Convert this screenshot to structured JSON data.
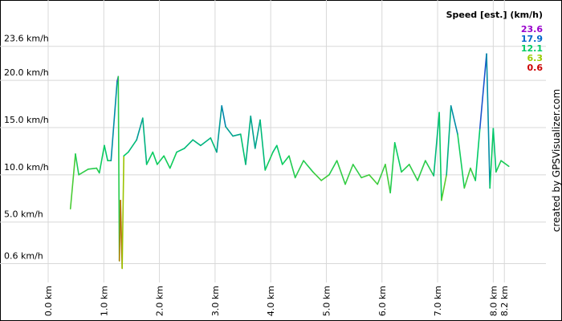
{
  "chart_data": {
    "type": "line",
    "x": [
      0.4,
      0.49,
      0.55,
      0.72,
      0.87,
      0.92,
      1.01,
      1.07,
      1.13,
      1.24,
      1.26,
      1.28,
      1.3,
      1.33,
      1.36,
      1.44,
      1.59,
      1.7,
      1.77,
      1.88,
      1.96,
      2.08,
      2.19,
      2.31,
      2.45,
      2.6,
      2.74,
      2.92,
      3.03,
      3.12,
      3.19,
      3.32,
      3.46,
      3.55,
      3.64,
      3.72,
      3.81,
      3.9,
      4.04,
      4.11,
      4.21,
      4.33,
      4.44,
      4.59,
      4.76,
      4.91,
      5.05,
      5.19,
      5.34,
      5.48,
      5.63,
      5.77,
      5.92,
      6.06,
      6.15,
      6.23,
      6.35,
      6.49,
      6.64,
      6.78,
      6.93,
      7.03,
      7.07,
      7.16,
      7.24,
      7.36,
      7.48,
      7.59,
      7.68,
      7.76,
      7.88,
      7.94,
      8.0,
      8.05,
      8.14,
      8.28
    ],
    "series": [
      {
        "name": "Speed",
        "values": [
          6.4,
          12.2,
          10.0,
          10.6,
          10.7,
          10.2,
          13.1,
          11.5,
          11.5,
          19.9,
          20.4,
          0.9,
          7.3,
          0.1,
          12.0,
          12.4,
          13.7,
          16.0,
          11.1,
          12.4,
          11.1,
          12.0,
          10.7,
          12.4,
          12.8,
          13.7,
          13.1,
          13.9,
          12.4,
          17.3,
          15.1,
          14.1,
          14.3,
          11.1,
          16.2,
          12.8,
          15.8,
          10.5,
          12.4,
          13.1,
          11.1,
          12.0,
          9.7,
          11.5,
          10.3,
          9.4,
          10.0,
          11.5,
          9.0,
          11.1,
          9.7,
          10.0,
          9.0,
          11.1,
          8.1,
          13.4,
          10.3,
          11.1,
          9.4,
          11.5,
          9.9,
          16.6,
          7.3,
          10.0,
          17.3,
          14.3,
          8.6,
          10.7,
          9.4,
          14.9,
          22.8,
          8.6,
          14.9,
          10.3,
          11.5,
          10.9
        ]
      }
    ],
    "color_scale": {
      "title": "Speed [est.] (km/h)",
      "values": [
        23.6,
        17.9,
        12.1,
        6.3,
        0.6
      ],
      "colors": [
        "#9900cc",
        "#0066cc",
        "#00cc66",
        "#99cc00",
        "#cc0000"
      ]
    },
    "xlim": [
      0,
      8.37
    ],
    "ylim": [
      -0.8,
      28.5
    ],
    "xticks": [
      {
        "value": 0,
        "label": "0.0 km"
      },
      {
        "value": 1,
        "label": "1.0 km"
      },
      {
        "value": 2,
        "label": "2.0 km"
      },
      {
        "value": 3,
        "label": "3.0 km"
      },
      {
        "value": 4,
        "label": "4.0 km"
      },
      {
        "value": 5,
        "label": "5.0 km"
      },
      {
        "value": 6,
        "label": "6.0 km"
      },
      {
        "value": 7,
        "label": "7.0 km"
      },
      {
        "value": 8,
        "label": "8.0 km"
      },
      {
        "value": 8.2,
        "label": "8.2 km"
      }
    ],
    "yticks": [
      {
        "value": 0.6,
        "label": "0.6 km/h"
      },
      {
        "value": 5,
        "label": "5.0 km/h"
      },
      {
        "value": 10,
        "label": "10.0 km/h"
      },
      {
        "value": 15,
        "label": "15.0 km/h"
      },
      {
        "value": 20,
        "label": "20.0 km/h"
      },
      {
        "value": 23.6,
        "label": "23.6 km/h"
      }
    ],
    "grid": true,
    "credit": "created by GPSVisualizer.com"
  }
}
